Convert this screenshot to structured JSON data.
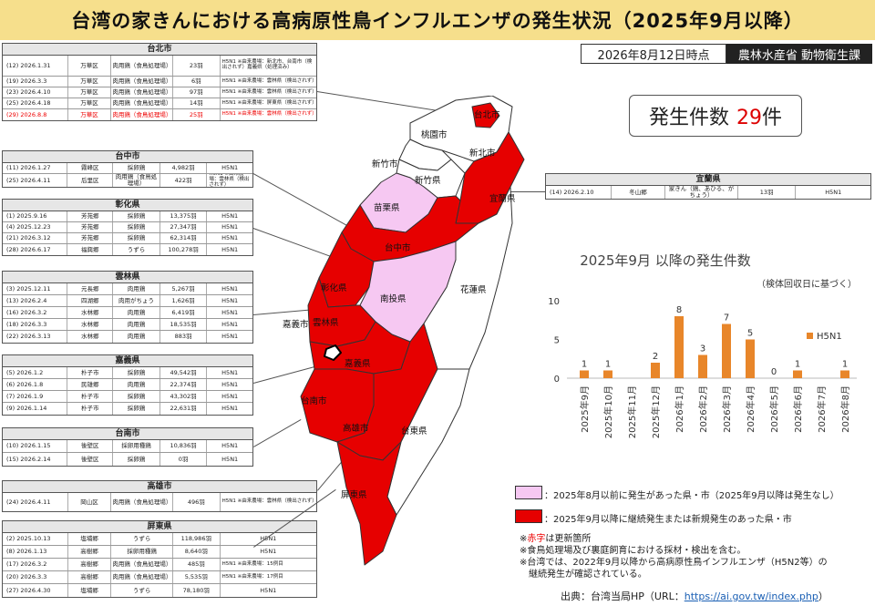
{
  "title": "台湾の家きんにおける高病原性鳥インフルエンザの発生状況（2025年9月以降）",
  "as_of": "2026年8月12日時点",
  "ministry": "農林水産省 動物衛生課",
  "count": {
    "label": "発生件数",
    "value": "29",
    "unit": "件"
  },
  "colors": {
    "red": "#e60000",
    "pink": "#f6c8f2",
    "bar": "#e8862a"
  },
  "tables": {
    "taipei": {
      "title": "台北市",
      "rows": [
        {
          "c1": "(12) 2026.1.31",
          "c2": "万華区",
          "c3": "肉用鶏（食鳥処理場）",
          "c4": "23羽",
          "c5": "H5N1 ※由来農場：新北市、台南市（検出されず）嘉義県（処理済み）",
          "red": false
        },
        {
          "c1": "(19) 2026.3.3",
          "c2": "万華区",
          "c3": "肉用鶏（食鳥処理場）",
          "c4": "6羽",
          "c5": "H5N1 ※由来農場：雲林県（検出されず）",
          "red": false
        },
        {
          "c1": "(23) 2026.4.10",
          "c2": "万華区",
          "c3": "肉用鶏（食鳥処理場）",
          "c4": "97羽",
          "c5": "H5N1 ※由来農場：雲林県（検出されず）",
          "red": false
        },
        {
          "c1": "(25) 2026.4.18",
          "c2": "万華区",
          "c3": "肉用鶏（食鳥処理場）",
          "c4": "14羽",
          "c5": "H5N1 ※由来農場：屏東県（検出されず）",
          "red": false
        },
        {
          "c1": "(29) 2026.8.8",
          "c2": "万華区",
          "c3": "肉用鶏（食鳥処理場）",
          "c4": "25羽",
          "c5": "H5N1 ※由来農場：雲林県（検出されず）",
          "red": true
        }
      ]
    },
    "taichung": {
      "title": "台中市",
      "rows": [
        {
          "c1": "(11) 2026.1.27",
          "c2": "霧峰区",
          "c3": "採卵鶏",
          "c4": "4,982羽",
          "c5": "H5N1"
        },
        {
          "c1": "(25) 2026.4.11",
          "c2": "后里区",
          "c3": "肉用鶏（食鳥処理場）",
          "c4": "422羽",
          "c5": "H5N1 ※由来農場：雲林県（検出されず）"
        }
      ]
    },
    "changhua": {
      "title": "彰化県",
      "rows": [
        {
          "c1": "(1) 2025.9.16",
          "c2": "芳苑郷",
          "c3": "採卵鶏",
          "c4": "13,375羽",
          "c5": "H5N1"
        },
        {
          "c1": "(4) 2025.12.23",
          "c2": "芳苑郷",
          "c3": "採卵鶏",
          "c4": "27,347羽",
          "c5": "H5N1"
        },
        {
          "c1": "(21) 2026.3.12",
          "c2": "芳苑郷",
          "c3": "採卵鶏",
          "c4": "62,314羽",
          "c5": "H5N1"
        },
        {
          "c1": "(28) 2026.6.17",
          "c2": "福興郷",
          "c3": "うずら",
          "c4": "100,278羽",
          "c5": "H5N1"
        }
      ]
    },
    "yunlin": {
      "title": "雲林県",
      "rows": [
        {
          "c1": "(3) 2025.12.11",
          "c2": "元長郷",
          "c3": "肉用鶏",
          "c4": "5,267羽",
          "c5": "H5N1"
        },
        {
          "c1": "(13) 2026.2.4",
          "c2": "四湖郷",
          "c3": "肉用がちょう",
          "c4": "1,626羽",
          "c5": "H5N1"
        },
        {
          "c1": "(16) 2026.3.2",
          "c2": "水林郷",
          "c3": "肉用鶏",
          "c4": "6,419羽",
          "c5": "H5N1"
        },
        {
          "c1": "(18) 2026.3.3",
          "c2": "水林郷",
          "c3": "肉用鶏",
          "c4": "18,535羽",
          "c5": "H5N1"
        },
        {
          "c1": "(22) 2026.3.13",
          "c2": "水林郷",
          "c3": "肉用鶏",
          "c4": "883羽",
          "c5": "H5N1"
        }
      ]
    },
    "chiayi": {
      "title": "嘉義県",
      "rows": [
        {
          "c1": "(5) 2026.1.2",
          "c2": "朴子市",
          "c3": "採卵鶏",
          "c4": "49,542羽",
          "c5": "H5N1"
        },
        {
          "c1": "(6) 2026.1.8",
          "c2": "民雄郷",
          "c3": "肉用鶏",
          "c4": "22,374羽",
          "c5": "H5N1"
        },
        {
          "c1": "(7) 2026.1.9",
          "c2": "朴子市",
          "c3": "採卵鶏",
          "c4": "43,302羽",
          "c5": "H5N1"
        },
        {
          "c1": "(9) 2026.1.14",
          "c2": "朴子市",
          "c3": "採卵鶏",
          "c4": "22,631羽",
          "c5": "H5N1"
        }
      ]
    },
    "tainan": {
      "title": "台南市",
      "rows": [
        {
          "c1": "(10) 2026.1.15",
          "c2": "後壁区",
          "c3": "採卵用種鶏",
          "c4": "10,836羽",
          "c5": "H5N1"
        },
        {
          "c1": "(15) 2026.2.14",
          "c2": "後壁区",
          "c3": "採卵鶏",
          "c4": "0羽",
          "c5": "H5N1"
        }
      ]
    },
    "kaohsiung": {
      "title": "高雄市",
      "rows": [
        {
          "c1": "(24) 2026.4.11",
          "c2": "岡山区",
          "c3": "肉用鶏（食鳥処理場）",
          "c4": "496羽",
          "c5": "H5N1 ※由来農場：雲林県（検出されず）"
        }
      ]
    },
    "pingtung": {
      "title": "屏東県",
      "rows": [
        {
          "c1": "(2) 2025.10.13",
          "c2": "塩埔郷",
          "c3": "うずら",
          "c4": "118,986羽",
          "c5": "H5N1"
        },
        {
          "c1": "(8) 2026.1.13",
          "c2": "高樹郷",
          "c3": "採卵用種鶏",
          "c4": "8,640羽",
          "c5": "H5N1"
        },
        {
          "c1": "(17) 2026.3.2",
          "c2": "高樹郷",
          "c3": "肉用鶏（食鳥処理場）",
          "c4": "485羽",
          "c5": "H5N1 ※由来農場：15例目"
        },
        {
          "c1": "(20) 2026.3.3",
          "c2": "高樹郷",
          "c3": "肉用鶏（食鳥処理場）",
          "c4": "5,535羽",
          "c5": "H5N1 ※由来農場：17例目"
        },
        {
          "c1": "(27) 2026.4.30",
          "c2": "塩埔郷",
          "c3": "うずら",
          "c4": "78,180羽",
          "c5": "H5N1"
        }
      ]
    },
    "yilan": {
      "title": "宜蘭県",
      "rows": [
        {
          "c1": "(14) 2026.2.10",
          "c2": "冬山郷",
          "c3": "家きん（鶏、あひる、がちょう）",
          "c4": "13羽",
          "c5": "H5N1"
        }
      ]
    }
  },
  "map_labels": {
    "taipei": "台北市",
    "taoyuan": "桃園市",
    "newtaipei": "新北市",
    "hsinchu_city": "新竹市",
    "hsinchu_county": "新竹県",
    "miaoli": "苗栗県",
    "yilan": "宜蘭県",
    "taichung": "台中市",
    "changhua": "彰化県",
    "nantou": "南投県",
    "hualien": "花蓮県",
    "yunlin": "雲林県",
    "chiayi_city": "嘉義市",
    "chiayi_county": "嘉義県",
    "tainan": "台南市",
    "kaohsiung": "高雄市",
    "taitung": "台東県",
    "pingtung": "屏東県"
  },
  "chart_data": {
    "type": "bar",
    "title": "2025年9月 以降の発生件数",
    "subtitle": "（検体回収日に基づく）",
    "categories": [
      "2025年9月",
      "2025年10月",
      "2025年11月",
      "2025年12月",
      "2026年1月",
      "2026年2月",
      "2026年3月",
      "2026年4月",
      "2026年5月",
      "2026年6月",
      "2026年7月",
      "2026年8月"
    ],
    "series": [
      {
        "name": "H5N1",
        "values": [
          1,
          1,
          null,
          2,
          8,
          3,
          7,
          5,
          0,
          1,
          null,
          1
        ]
      }
    ],
    "data_labels": [
      "1",
      "1",
      "",
      "2",
      "8",
      "3",
      "7",
      "5",
      "0",
      "1",
      "",
      "1"
    ],
    "ylim": [
      0,
      10
    ],
    "yticks": [
      0,
      5,
      10
    ],
    "legend": "right",
    "grid": false
  },
  "legend": {
    "pink": "：2025年8月以前に発生があった県・市（2025年9月以降は発生なし）",
    "red": "：2025年9月以降に継続発生または新規発生のあった県・市"
  },
  "notes": {
    "n1_red": "赤字",
    "n1_rest": "は更新箇所",
    "n2": "※食鳥処理場及び裏庭飼育における採材・検出を含む。",
    "n3a": "※台湾では、2022年9月以降から高病原性鳥インフルエンザ（H5N2等）の",
    "n3b": "継続発生が確認されている。",
    "mark": "※"
  },
  "source": {
    "label": "出典：台湾当局HP（URL：",
    "url": "https://ai.gov.tw/index.php",
    "end": "）"
  }
}
